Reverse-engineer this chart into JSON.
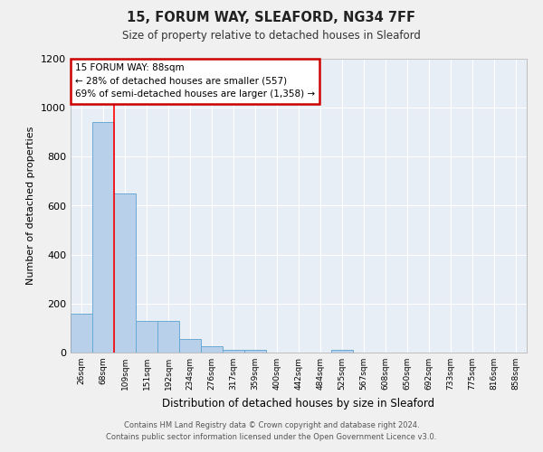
{
  "title_line1": "15, FORUM WAY, SLEAFORD, NG34 7FF",
  "title_line2": "Size of property relative to detached houses in Sleaford",
  "xlabel": "Distribution of detached houses by size in Sleaford",
  "ylabel": "Number of detached properties",
  "categories": [
    "26sqm",
    "68sqm",
    "109sqm",
    "151sqm",
    "192sqm",
    "234sqm",
    "276sqm",
    "317sqm",
    "359sqm",
    "400sqm",
    "442sqm",
    "484sqm",
    "525sqm",
    "567sqm",
    "608sqm",
    "650sqm",
    "692sqm",
    "733sqm",
    "775sqm",
    "816sqm",
    "858sqm"
  ],
  "values": [
    160,
    940,
    650,
    130,
    130,
    57,
    25,
    12,
    12,
    0,
    0,
    0,
    12,
    0,
    0,
    0,
    0,
    0,
    0,
    0,
    0
  ],
  "bar_color": "#b8d0ea",
  "bar_edge_color": "#6aaad4",
  "background_color": "#e8eef6",
  "grid_color": "#ffffff",
  "annotation_text": "15 FORUM WAY: 88sqm\n← 28% of detached houses are smaller (557)\n69% of semi-detached houses are larger (1,358) →",
  "annotation_box_color": "#ffffff",
  "annotation_box_edge": "#cc0000",
  "footer_line1": "Contains HM Land Registry data © Crown copyright and database right 2024.",
  "footer_line2": "Contains public sector information licensed under the Open Government Licence v3.0.",
  "ylim": [
    0,
    1200
  ],
  "yticks": [
    0,
    200,
    400,
    600,
    800,
    1000,
    1200
  ],
  "red_line_x": 1.5
}
